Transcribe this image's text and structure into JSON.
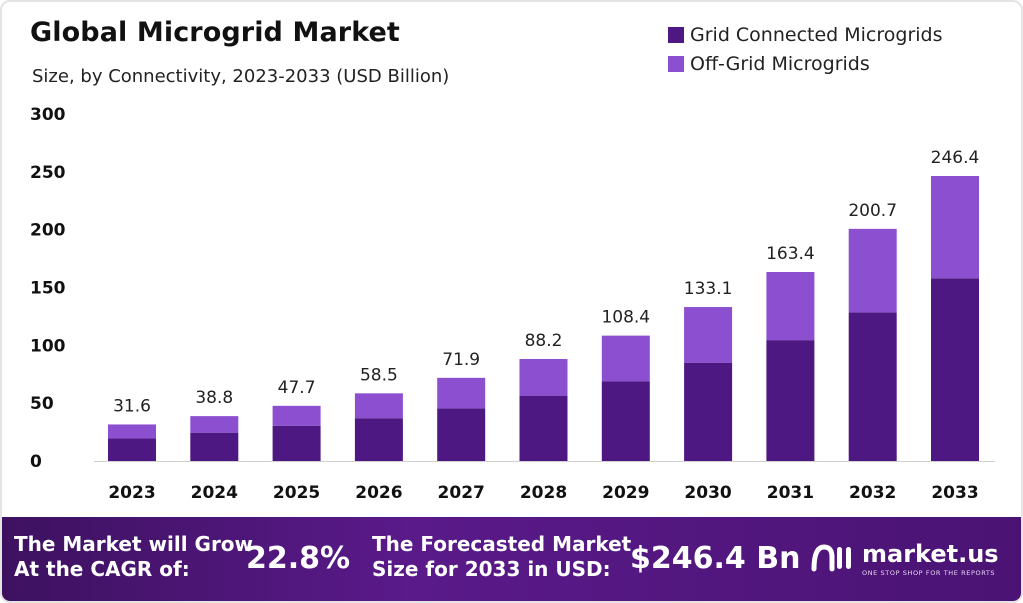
{
  "chart_data": {
    "type": "bar",
    "stacked": true,
    "title": "Global Microgrid Market",
    "subtitle": "Size, by Connectivity, 2023-2033 (USD Billion)",
    "categories": [
      "2023",
      "2024",
      "2025",
      "2026",
      "2027",
      "2028",
      "2029",
      "2030",
      "2031",
      "2032",
      "2033"
    ],
    "series": [
      {
        "name": "Grid Connected Microgrids",
        "color": "#4e1883",
        "values": [
          19.5,
          24.5,
          30.5,
          37.0,
          45.5,
          56.5,
          69.0,
          85.0,
          104.5,
          128.5,
          158.0
        ]
      },
      {
        "name": "Off-Grid Microgrids",
        "color": "#8b4fd0",
        "values": [
          12.1,
          14.3,
          17.2,
          21.5,
          26.4,
          31.7,
          39.4,
          48.1,
          58.9,
          72.2,
          88.4
        ]
      }
    ],
    "totals": [
      "31.6",
      "38.8",
      "47.7",
      "58.5",
      "71.9",
      "88.2",
      "108.4",
      "133.1",
      "163.4",
      "200.7",
      "246.4"
    ],
    "yticks": [
      "0",
      "50",
      "100",
      "150",
      "200",
      "250",
      "300"
    ],
    "ylim": [
      0,
      300
    ],
    "legend_position": "top-right",
    "grid": false
  },
  "banner": {
    "cagr_label_line1": "The Market will Grow",
    "cagr_label_line2": "At the CAGR of:",
    "cagr_value": "22.8%",
    "forecast_label_line1": "The Forecasted Market",
    "forecast_label_line2": "Size for 2033 in USD:",
    "forecast_value": "$246.4 Bn",
    "brand_name": "market.us",
    "brand_tagline": "ONE STOP SHOP FOR THE REPORTS"
  }
}
